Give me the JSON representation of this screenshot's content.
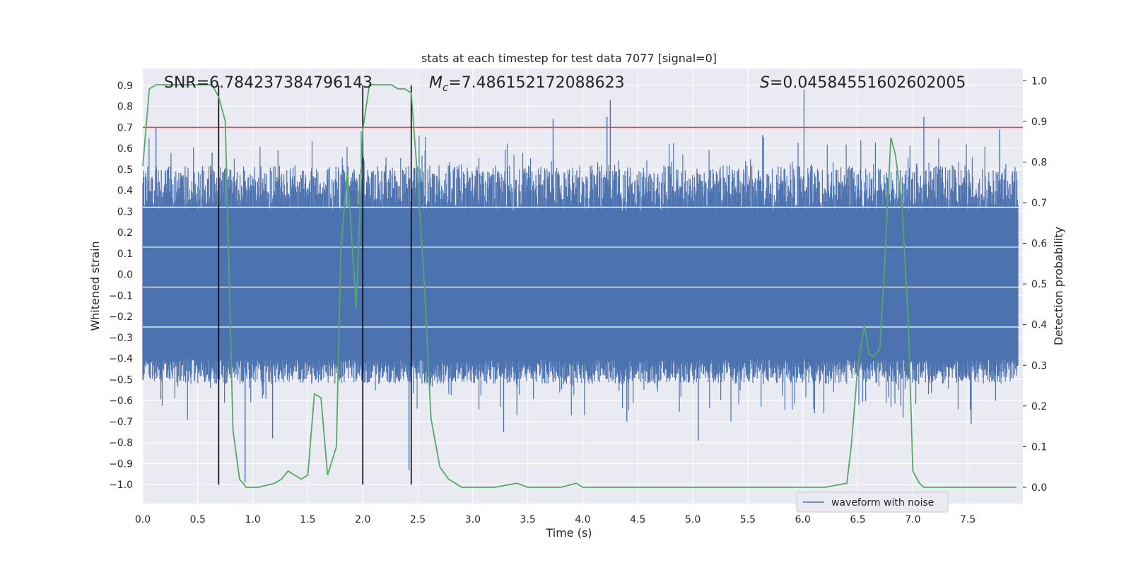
{
  "chart_data": {
    "type": "line",
    "title": "stats at each timestep for test data 7077 [signal=0]",
    "xlabel": "Time (s)",
    "ylabel_left": "Whitened strain",
    "ylabel_right": "Detection probability",
    "xlim": [
      0.0,
      8.0
    ],
    "ylim_left": [
      -1.09,
      0.98
    ],
    "ylim_right": [
      -0.04,
      1.03
    ],
    "x_ticks": [
      "0.0",
      "0.5",
      "1.0",
      "1.5",
      "2.0",
      "2.5",
      "3.0",
      "3.5",
      "4.0",
      "4.5",
      "5.0",
      "5.5",
      "6.0",
      "6.5",
      "7.0",
      "7.5"
    ],
    "y_ticks_left": [
      "0.9",
      "0.8",
      "0.7",
      "0.6",
      "0.5",
      "0.4",
      "0.3",
      "0.2",
      "0.1",
      "0.0",
      "−0.1",
      "−0.2",
      "−0.3",
      "−0.4",
      "−0.5",
      "−0.6",
      "−0.7",
      "−0.8",
      "−0.9",
      "−1.0"
    ],
    "y_ticks_right": [
      "1.0",
      "0.9",
      "0.8",
      "0.7",
      "0.6",
      "0.5",
      "0.4",
      "0.3",
      "0.2",
      "0.1",
      "0.0"
    ],
    "grid": true,
    "legend_position": "bottom-right",
    "annotations": {
      "snr": "SNR=6.784237384796143",
      "mc_symbol": "M",
      "mc_sub": "c",
      "mc_value": "=7.486152172088623",
      "s_symbol": "S",
      "s_value": "=0.04584551602602005"
    },
    "threshold": 0.7,
    "vertical_lines": [
      0.69,
      2.0,
      2.44
    ],
    "series": [
      {
        "name": "waveform with noise",
        "axis": "left",
        "envelope_upper_typical": 0.3,
        "envelope_lower_typical": -0.4,
        "spike_peaks": [
          {
            "x": 0.12,
            "y": 0.7
          },
          {
            "x": 0.63,
            "y": 0.58
          },
          {
            "x": 0.93,
            "y": -0.99
          },
          {
            "x": 1.18,
            "y": -0.78
          },
          {
            "x": 2.42,
            "y": -0.93
          },
          {
            "x": 3.73,
            "y": 0.74
          },
          {
            "x": 4.25,
            "y": 0.83
          },
          {
            "x": 4.22,
            "y": 0.75
          },
          {
            "x": 5.05,
            "y": -0.79
          },
          {
            "x": 6.01,
            "y": 0.88
          },
          {
            "x": 7.1,
            "y": 0.75
          },
          {
            "x": 7.53,
            "y": -0.71
          },
          {
            "x": 7.79,
            "y": 0.69
          },
          {
            "x": 3.28,
            "y": -0.75
          },
          {
            "x": 4.4,
            "y": -0.7
          }
        ]
      },
      {
        "name": "",
        "axis": "right",
        "color": "#55a868",
        "x": [
          0.0,
          0.06,
          0.12,
          0.3,
          0.5,
          0.63,
          0.69,
          0.75,
          0.82,
          0.88,
          0.94,
          1.05,
          1.2,
          1.26,
          1.32,
          1.44,
          1.5,
          1.56,
          1.62,
          1.68,
          1.76,
          1.8,
          1.86,
          1.94,
          2.0,
          2.06,
          2.12,
          2.18,
          2.26,
          2.32,
          2.38,
          2.44,
          2.5,
          2.56,
          2.62,
          2.7,
          2.78,
          2.84,
          2.9,
          3.0,
          3.2,
          3.4,
          3.5,
          3.6,
          3.8,
          3.94,
          4.0,
          4.2,
          4.5,
          4.8,
          5.0,
          5.2,
          5.4,
          5.6,
          5.8,
          6.0,
          6.2,
          6.4,
          6.44,
          6.5,
          6.56,
          6.6,
          6.64,
          6.7,
          6.74,
          6.8,
          6.84,
          6.9,
          6.96,
          7.0,
          7.06,
          7.1,
          7.16,
          7.3,
          7.6,
          7.8,
          7.94
        ],
        "values": [
          0.79,
          0.98,
          0.99,
          0.99,
          0.99,
          0.99,
          0.96,
          0.9,
          0.14,
          0.02,
          0.0,
          0.0,
          0.01,
          0.02,
          0.04,
          0.02,
          0.03,
          0.23,
          0.22,
          0.03,
          0.1,
          0.58,
          0.78,
          0.44,
          0.88,
          0.99,
          0.99,
          0.99,
          0.99,
          0.98,
          0.98,
          0.97,
          0.75,
          0.5,
          0.17,
          0.05,
          0.02,
          0.01,
          0.0,
          0.0,
          0.0,
          0.01,
          0.0,
          0.0,
          0.0,
          0.01,
          0.0,
          0.0,
          0.0,
          0.0,
          0.0,
          0.0,
          0.0,
          0.0,
          0.0,
          0.0,
          0.0,
          0.01,
          0.1,
          0.3,
          0.4,
          0.33,
          0.32,
          0.34,
          0.53,
          0.86,
          0.82,
          0.7,
          0.4,
          0.04,
          0.01,
          0.0,
          0.0,
          0.0,
          0.0,
          0.0,
          0.0
        ]
      }
    ]
  }
}
